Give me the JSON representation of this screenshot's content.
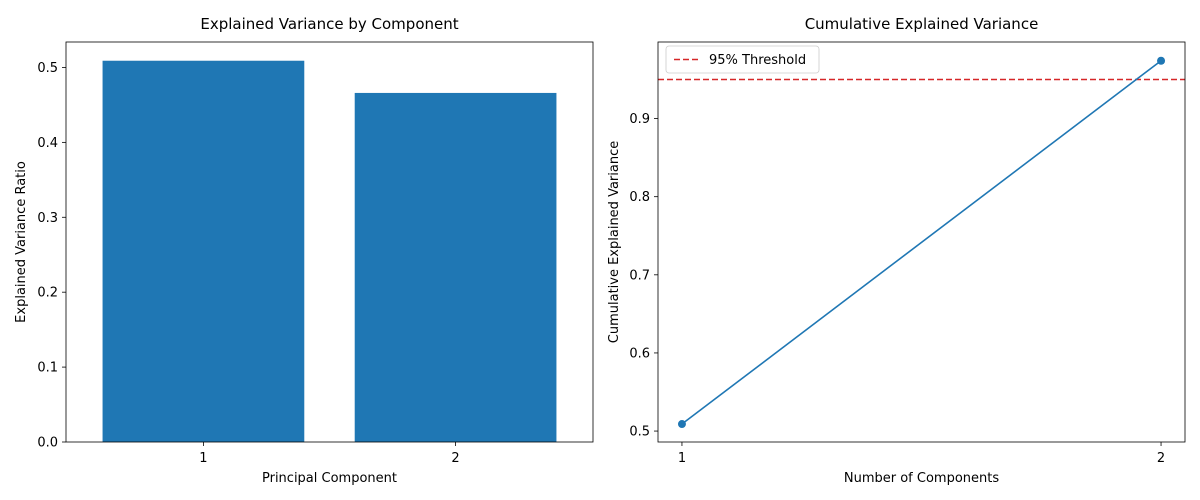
{
  "chart_data": [
    {
      "type": "bar",
      "title": "Explained Variance by Component",
      "xlabel": "Principal Component",
      "ylabel": "Explained Variance Ratio",
      "categories": [
        "1",
        "2"
      ],
      "values": [
        0.509,
        0.466
      ],
      "ylim": [
        0,
        0.534
      ],
      "yticks": [
        "0.0",
        "0.1",
        "0.2",
        "0.3",
        "0.4",
        "0.5"
      ],
      "color": "#1f77b4",
      "grid": false
    },
    {
      "type": "line",
      "title": "Cumulative Explained Variance",
      "xlabel": "Number of Components",
      "ylabel": "Cumulative Explained Variance",
      "x": [
        1,
        2
      ],
      "y": [
        0.509,
        0.974
      ],
      "xlim": [
        0.95,
        2.05
      ],
      "ylim": [
        0.486,
        0.998
      ],
      "xticks": [
        "1",
        "2"
      ],
      "yticks": [
        "0.5",
        "0.6",
        "0.7",
        "0.8",
        "0.9"
      ],
      "color": "#1f77b4",
      "markers": true,
      "threshold": {
        "value": 0.95,
        "label": "95% Threshold",
        "color": "#d62728",
        "style": "dashed"
      },
      "legend": "upper-left",
      "grid": false
    }
  ]
}
